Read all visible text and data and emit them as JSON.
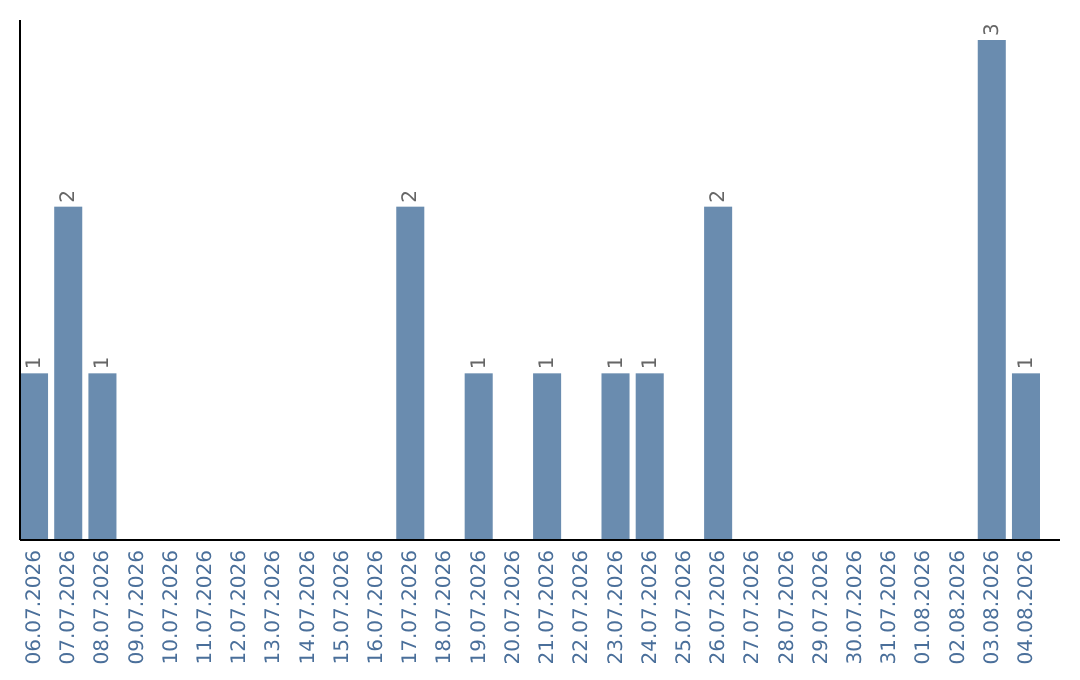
{
  "chart_data": {
    "type": "bar",
    "categories": [
      "06.07.2026",
      "07.07.2026",
      "08.07.2026",
      "09.07.2026",
      "10.07.2026",
      "11.07.2026",
      "12.07.2026",
      "13.07.2026",
      "14.07.2026",
      "15.07.2026",
      "16.07.2026",
      "17.07.2026",
      "18.07.2026",
      "19.07.2026",
      "20.07.2026",
      "21.07.2026",
      "22.07.2026",
      "23.07.2026",
      "24.07.2026",
      "25.07.2026",
      "26.07.2026",
      "27.07.2026",
      "28.07.2026",
      "29.07.2026",
      "30.07.2026",
      "31.07.2026",
      "01.08.2026",
      "02.08.2026",
      "03.08.2026",
      "04.08.2026"
    ],
    "values": [
      1,
      2,
      1,
      0,
      0,
      0,
      0,
      0,
      0,
      0,
      0,
      2,
      0,
      1,
      0,
      1,
      0,
      1,
      1,
      0,
      2,
      0,
      0,
      0,
      0,
      0,
      0,
      0,
      3,
      1
    ],
    "value_labels": [
      "1",
      "2",
      "1",
      null,
      null,
      null,
      null,
      null,
      null,
      null,
      null,
      "2",
      null,
      "1",
      null,
      "1",
      null,
      "1",
      "1",
      null,
      "2",
      null,
      null,
      null,
      null,
      null,
      null,
      null,
      "3",
      "1"
    ],
    "color": "#6a8caf",
    "ylim": [
      0,
      3
    ],
    "tick_labels": "x"
  }
}
